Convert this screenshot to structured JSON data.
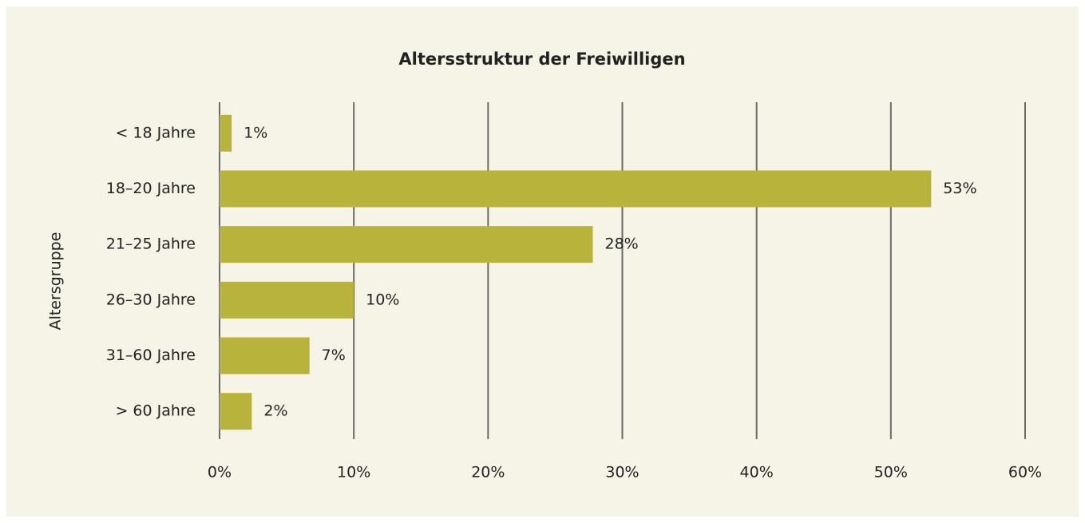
{
  "chart_data": {
    "type": "barh",
    "title": "Altersstruktur der Freiwilligen",
    "y_label": "Altersgruppe",
    "categories": [
      "< 18 Jahre",
      "18–20 Jahre",
      "21–25 Jahre",
      "26–30 Jahre",
      "31–60 Jahre",
      "> 60 Jahre"
    ],
    "values": [
      0.9,
      53,
      27.8,
      10,
      6.7,
      2.4
    ],
    "value_labels": [
      "1%",
      "53%",
      "28%",
      "10%",
      "7%",
      "2%"
    ],
    "color": "#b8b33b",
    "xlim": [
      0,
      60
    ],
    "xticks": [
      {
        "value": 0,
        "label": "0%"
      },
      {
        "value": 10,
        "label": "10%"
      },
      {
        "value": 20,
        "label": "20%"
      },
      {
        "value": 30,
        "label": "30%"
      },
      {
        "value": 40,
        "label": "40%"
      },
      {
        "value": 50,
        "label": "50%"
      },
      {
        "value": 60,
        "label": "60%"
      }
    ],
    "grid": true
  }
}
